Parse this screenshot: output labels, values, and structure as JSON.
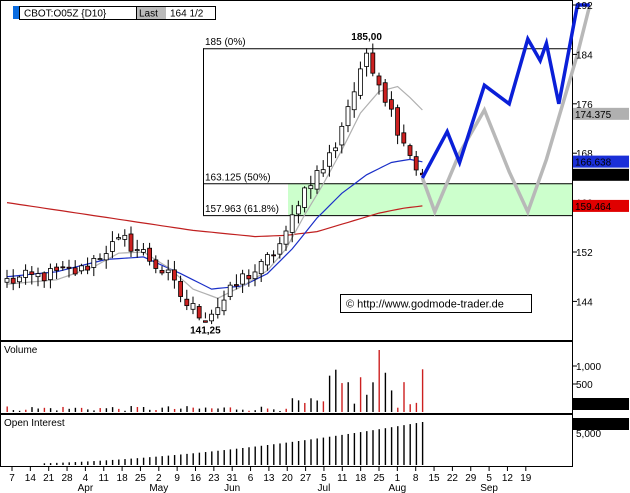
{
  "header": {
    "symbol": "CBOT:O05Z {D10}",
    "last_label": "Last",
    "last_value": "164 1/2"
  },
  "copyright": "© http://www.godmode-trader.de",
  "colors": {
    "candle_up": "#ffffff",
    "candle_down": "#cc2020",
    "ma_fast": "#b0b0b0",
    "ma_mid": "#1a2fc8",
    "ma_slow": "#c02020",
    "fib_zone": "#ccffcc",
    "projection_blue": "#0a1fd8",
    "projection_gray": "#b8b8b8"
  },
  "chart_data": [
    {
      "type": "candlestick",
      "name": "price",
      "ylim": [
        138,
        192
      ],
      "y_ticks": [
        192,
        184,
        176,
        168,
        160,
        152,
        144
      ],
      "x_ticks": [
        "7",
        "14",
        "21",
        "28",
        "4",
        "11",
        "18",
        "25",
        "2",
        "9",
        "16",
        "23",
        "31",
        "6",
        "13",
        "20",
        "27",
        "5",
        "11",
        "18",
        "25",
        "1",
        "8",
        "15",
        "22",
        "29",
        "5",
        "12",
        "19"
      ],
      "months": [
        {
          "label": "Apr",
          "at_tick": 4
        },
        {
          "label": "May",
          "at_tick": 8
        },
        {
          "label": "Jun",
          "at_tick": 12
        },
        {
          "label": "Jul",
          "at_tick": 17
        },
        {
          "label": "Aug",
          "at_tick": 21
        },
        {
          "label": "Sep",
          "at_tick": 26
        }
      ],
      "price_labels": [
        {
          "value": 174.375,
          "text": "174.375",
          "style": "gray"
        },
        {
          "value": 166.638,
          "text": "166.638",
          "style": "blue"
        },
        {
          "value": 164.5,
          "text": "164 1/2",
          "style": "black"
        },
        {
          "value": 159.464,
          "text": "159.464",
          "style": "red"
        }
      ],
      "fib_levels": [
        {
          "value": 185,
          "text": "185 (0%)"
        },
        {
          "value": 163.125,
          "text": "163.125 (50%)"
        },
        {
          "value": 157.963,
          "text": "157.963 (61.8%)"
        }
      ],
      "annotations": [
        {
          "text": "185,00",
          "value": 185
        },
        {
          "text": "141,25",
          "value": 141.25
        }
      ],
      "anchors": [
        [
          0,
          147.3
        ],
        [
          6,
          148.2
        ],
        [
          12,
          149.0
        ],
        [
          16,
          152.5
        ],
        [
          19,
          153.8
        ],
        [
          22,
          151.8
        ],
        [
          26,
          148.0
        ],
        [
          29,
          143.5
        ],
        [
          32,
          141.5
        ],
        [
          35,
          144.2
        ],
        [
          38,
          147.8
        ],
        [
          41,
          149.5
        ],
        [
          43,
          152.0
        ],
        [
          45,
          154.5
        ],
        [
          47,
          160.5
        ],
        [
          49,
          163.8
        ],
        [
          51,
          165.6
        ],
        [
          53,
          169.5
        ],
        [
          55,
          175.8
        ],
        [
          57,
          180.5
        ],
        [
          58,
          184.0
        ],
        [
          59,
          182.2
        ],
        [
          61,
          177.2
        ],
        [
          63,
          172.2
        ],
        [
          65,
          168.2
        ],
        [
          66,
          165.5
        ],
        [
          67,
          164.3
        ]
      ],
      "ma_fast_anchors": [
        [
          0,
          146.8
        ],
        [
          8,
          147.5
        ],
        [
          14,
          149.6
        ],
        [
          18,
          151.8
        ],
        [
          22,
          152.0
        ],
        [
          26,
          149.5
        ],
        [
          30,
          146.0
        ],
        [
          34,
          144.5
        ],
        [
          38,
          146.5
        ],
        [
          42,
          149.0
        ],
        [
          45,
          152.5
        ],
        [
          48,
          158.0
        ],
        [
          51,
          163.0
        ],
        [
          54,
          168.5
        ],
        [
          57,
          174.5
        ],
        [
          60,
          178.0
        ],
        [
          63,
          178.8
        ],
        [
          65,
          177.0
        ],
        [
          67,
          175.0
        ]
      ],
      "ma_mid_anchors": [
        [
          0,
          148.0
        ],
        [
          8,
          148.8
        ],
        [
          16,
          150.8
        ],
        [
          22,
          151.2
        ],
        [
          28,
          148.5
        ],
        [
          33,
          146.0
        ],
        [
          38,
          146.5
        ],
        [
          42,
          148.5
        ],
        [
          46,
          152.5
        ],
        [
          50,
          157.5
        ],
        [
          54,
          161.5
        ],
        [
          58,
          164.5
        ],
        [
          62,
          166.5
        ],
        [
          65,
          167.0
        ],
        [
          67,
          166.6
        ]
      ],
      "ma_slow_anchors": [
        [
          0,
          160.0
        ],
        [
          10,
          158.5
        ],
        [
          20,
          157.0
        ],
        [
          30,
          155.5
        ],
        [
          40,
          154.5
        ],
        [
          45,
          154.7
        ],
        [
          50,
          155.3
        ],
        [
          55,
          156.8
        ],
        [
          60,
          158.3
        ],
        [
          64,
          159.1
        ],
        [
          67,
          159.46
        ]
      ],
      "projection_blue": [
        [
          67,
          164.0
        ],
        [
          71,
          171.5
        ],
        [
          73,
          166.5
        ],
        [
          77,
          179.0
        ],
        [
          81,
          176.0
        ],
        [
          84,
          186.5
        ],
        [
          86,
          183.0
        ],
        [
          87,
          185.8
        ],
        [
          89,
          176.0
        ],
        [
          92,
          192.0
        ],
        [
          94,
          192.0
        ]
      ],
      "projection_gray": [
        [
          67,
          164.0
        ],
        [
          69,
          158.5
        ],
        [
          73,
          168.0
        ],
        [
          77,
          175.0
        ],
        [
          81,
          165.0
        ],
        [
          84,
          158.5
        ],
        [
          87,
          167.0
        ],
        [
          92,
          184.0
        ],
        [
          94,
          192.0
        ]
      ]
    },
    {
      "type": "bar",
      "name": "Volume",
      "title": "Volume",
      "y_ticks": [
        "1,000",
        "500"
      ],
      "current_label": "2"
    },
    {
      "type": "bar",
      "name": "Open Interest",
      "title": "Open Interest",
      "current_label": "6,086",
      "y_ticks": [
        "5,000"
      ]
    }
  ]
}
